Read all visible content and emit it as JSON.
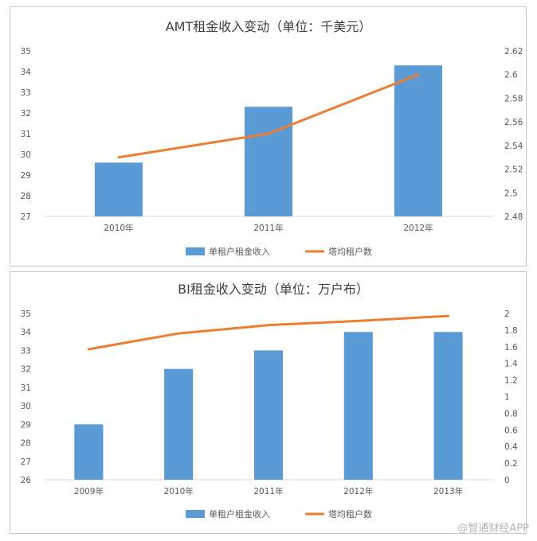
{
  "watermark": "@智通财经APP",
  "colors": {
    "bar": "#5b9bd5",
    "line": "#ed7d31",
    "axis": "#d9d9d9",
    "text": "#595959",
    "title": "#404040"
  },
  "chart_data": [
    {
      "type": "bar",
      "title": "AMT租金收入变动（单位：千美元）",
      "categories": [
        "2010年",
        "2011年",
        "2012年"
      ],
      "series": [
        {
          "name": "单租户租金收入",
          "type": "bar",
          "axis": "left",
          "values": [
            29.6,
            32.3,
            34.3
          ]
        },
        {
          "name": "塔均租户数",
          "type": "line",
          "axis": "right",
          "values": [
            2.53,
            2.55,
            2.6
          ]
        }
      ],
      "ylim_left": [
        27,
        35
      ],
      "ylim_right": [
        2.48,
        2.62
      ],
      "yticks_left": [
        "27",
        "28",
        "29",
        "30",
        "31",
        "32",
        "33",
        "34",
        "35"
      ],
      "yticks_right": [
        "2.48",
        "2.5",
        "2.52",
        "2.54",
        "2.56",
        "2.58",
        "2.6",
        "2.62"
      ],
      "legend": "bottom",
      "grid": false
    },
    {
      "type": "bar",
      "title": "BI租金收入变动（单位：万户布）",
      "categories": [
        "2009年",
        "2010年",
        "2011年",
        "2012年",
        "2013年"
      ],
      "series": [
        {
          "name": "单租户租金收入",
          "type": "bar",
          "axis": "left",
          "values": [
            29,
            32,
            33,
            34,
            34
          ]
        },
        {
          "name": "塔均租户数",
          "type": "line",
          "axis": "right",
          "values": [
            1.57,
            1.76,
            1.86,
            1.91,
            1.97
          ]
        }
      ],
      "ylim_left": [
        26,
        35
      ],
      "ylim_right": [
        0,
        2
      ],
      "yticks_left": [
        "26",
        "27",
        "28",
        "29",
        "30",
        "31",
        "32",
        "33",
        "34",
        "35"
      ],
      "yticks_right": [
        "0",
        "0.2",
        "0.4",
        "0.6",
        "0.8",
        "1",
        "1.2",
        "1.4",
        "1.6",
        "1.8",
        "2"
      ],
      "legend": "bottom",
      "grid": false
    }
  ]
}
